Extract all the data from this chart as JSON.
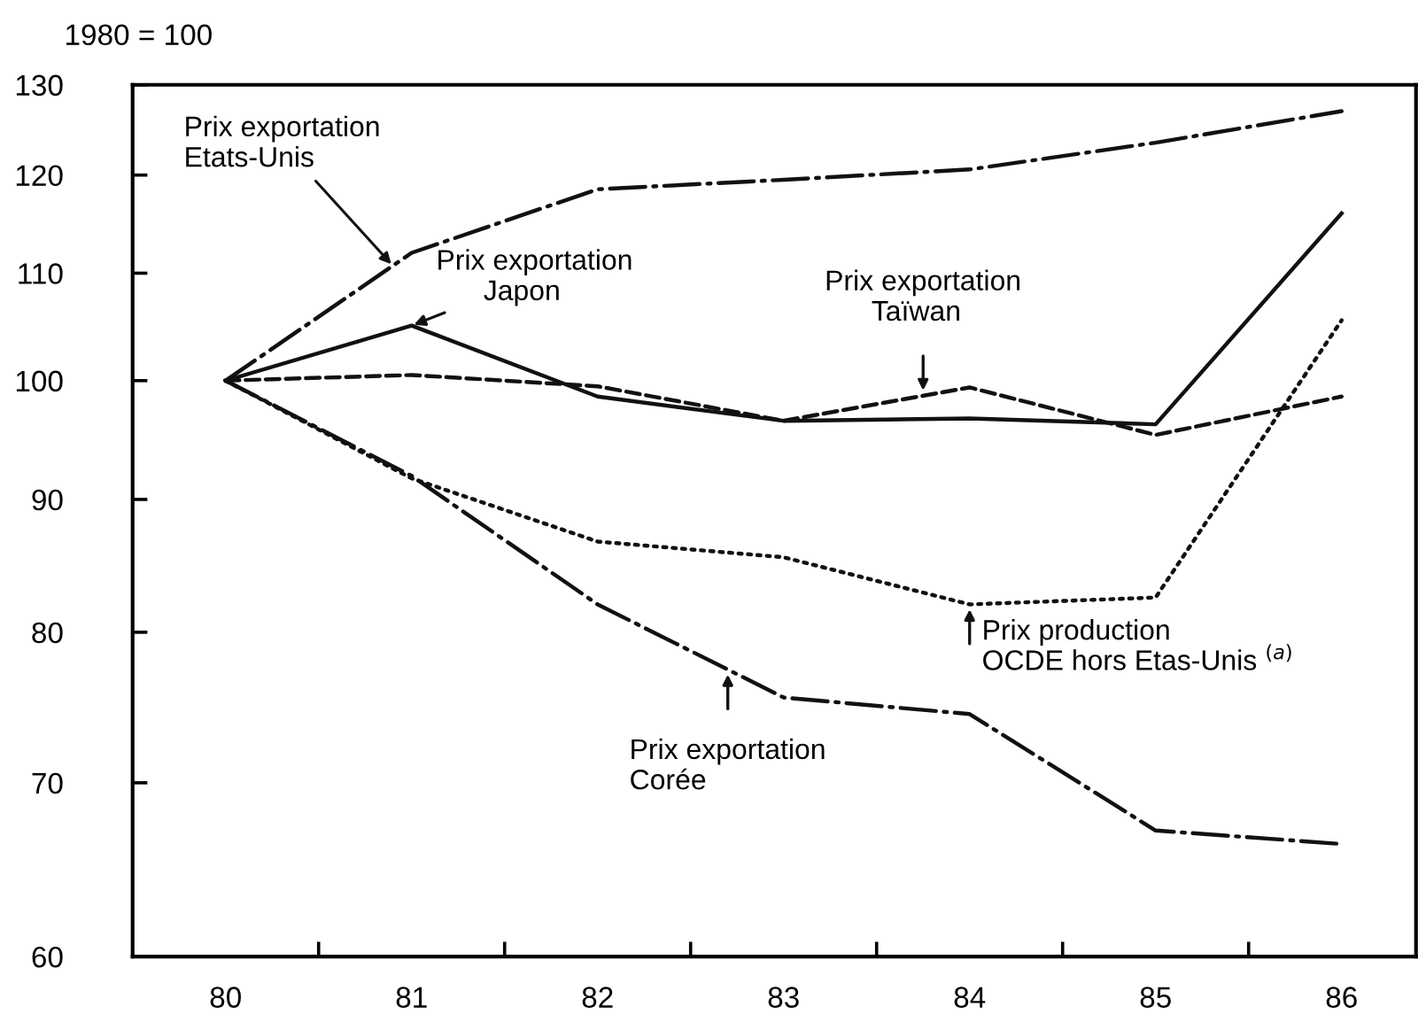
{
  "chart_data": {
    "type": "line",
    "ylabel": "1980 = 100",
    "x": [
      80,
      81,
      82,
      83,
      84,
      85,
      86
    ],
    "series": [
      {
        "color": "#111111",
        "line_style": "dashdot",
        "values": [
          100,
          112,
          118.5,
          119.5,
          120.6,
          123.5,
          127
        ]
      },
      {
        "color": "#111111",
        "line_style": "solid",
        "values": [
          100,
          105,
          98.6,
          96.5,
          96.7,
          96.2,
          116
        ]
      },
      {
        "color": "#111111",
        "line_style": "dashed",
        "values": [
          100,
          100.5,
          99.5,
          96.5,
          99.4,
          95.3,
          98.6
        ]
      },
      {
        "color": "#111111",
        "line_style": "dotted",
        "values": [
          100,
          91.7,
          86.7,
          85.5,
          82,
          82.5,
          105.5
        ]
      },
      {
        "color": "#111111",
        "line_style": "dashdot",
        "values": [
          100,
          91.9,
          82,
          75.5,
          74.4,
          67.1,
          66.3
        ]
      }
    ],
    "log": "y",
    "ylim": [
      60,
      130
    ],
    "yticks": [
      60,
      70,
      80,
      90,
      100,
      110,
      120,
      130
    ],
    "xlim": [
      79.5,
      86.4
    ],
    "xticks": [
      80,
      81,
      82,
      83,
      84,
      85,
      86,
      {
        "value": 80.5,
        "label": null
      },
      {
        "value": 81.5,
        "label": null
      },
      {
        "value": 82.5,
        "label": null
      },
      {
        "value": 83.5,
        "label": null
      },
      {
        "value": 84.5,
        "label": null
      },
      {
        "value": 85.5,
        "label": null
      }
    ],
    "grid": false,
    "marker": "none",
    "annotations": [
      {
        "text": "Prix exportation\nEtats-Unis",
        "x": 80.9,
        "y": 110.7
      },
      {
        "text": "Prix exportation\n      Japon",
        "x": 81,
        "y": 105
      },
      {
        "text": "Prix exportation\n      Taïwan",
        "x": 83.75,
        "y": 98.7
      },
      {
        "text": "Prix production\nOCDE hors Etas-Unis $^{(a)}$",
        "x": 84,
        "y": 82
      },
      {
        "text": "Prix exportation\nCorée",
        "x": 82.7,
        "y": 77.4
      }
    ]
  }
}
